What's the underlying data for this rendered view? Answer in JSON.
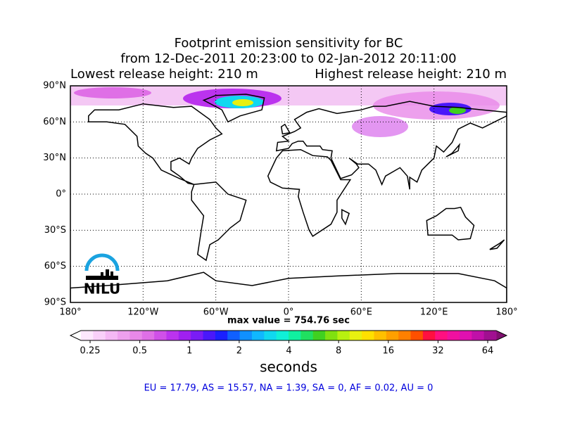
{
  "title": [
    "Footprint emission sensitivity for BC",
    "from 12-Dec-2011 20:23:00 to 02-Jan-2012 20:11:00"
  ],
  "lowest_release": "Lowest release height: 210 m",
  "highest_release": "Highest release height: 210 m",
  "map": {
    "xlim": [
      -180,
      180
    ],
    "ylim": [
      -90,
      90
    ],
    "grid": true,
    "logo": "NILU",
    "lat_ticks": [
      {
        "value": 90,
        "label": "90°N"
      },
      {
        "value": 60,
        "label": "60°N"
      },
      {
        "value": 30,
        "label": "30°N"
      },
      {
        "value": 0,
        "label": "0°"
      },
      {
        "value": -30,
        "label": "30°S"
      },
      {
        "value": -60,
        "label": "60°S"
      },
      {
        "value": -90,
        "label": "90°S"
      }
    ],
    "lon_ticks": [
      {
        "value": -180,
        "label": "180°"
      },
      {
        "value": -120,
        "label": "120°W"
      },
      {
        "value": -60,
        "label": "60°W"
      },
      {
        "value": 0,
        "label": "0°"
      },
      {
        "value": 60,
        "label": "60°E"
      },
      {
        "value": 120,
        "label": "120°E"
      },
      {
        "value": 180,
        "label": "180°"
      }
    ]
  },
  "max_value": "max value = 754.76 sec",
  "colorbar": {
    "log": true,
    "clim": [
      0.22,
      72
    ],
    "label": "seconds",
    "ticks": [
      0.25,
      0.5,
      1,
      2,
      4,
      8,
      16,
      32,
      64
    ],
    "colors": [
      "#ffffff",
      "#fde8fd",
      "#f9d0f9",
      "#f4b8f4",
      "#eea0ee",
      "#e888e8",
      "#df6fe6",
      "#d050e8",
      "#bb33ee",
      "#a020f0",
      "#7a1cf5",
      "#4a18fa",
      "#1a20ff",
      "#1060ff",
      "#1090ff",
      "#10b8ff",
      "#10d8f0",
      "#10f0d8",
      "#10f0a0",
      "#20e060",
      "#40d020",
      "#80e010",
      "#b8f010",
      "#e8f010",
      "#ffe000",
      "#ffc000",
      "#ffa000",
      "#ff8000",
      "#ff5000",
      "#ff1040",
      "#ff1080",
      "#f010a0",
      "#e010b0",
      "#c010a8",
      "#a01090",
      "#801070"
    ]
  },
  "regions": "EU = 17.79,  AS = 15.57,  NA = 1.39,  SA = 0,  AF = 0.02,  AU = 0"
}
